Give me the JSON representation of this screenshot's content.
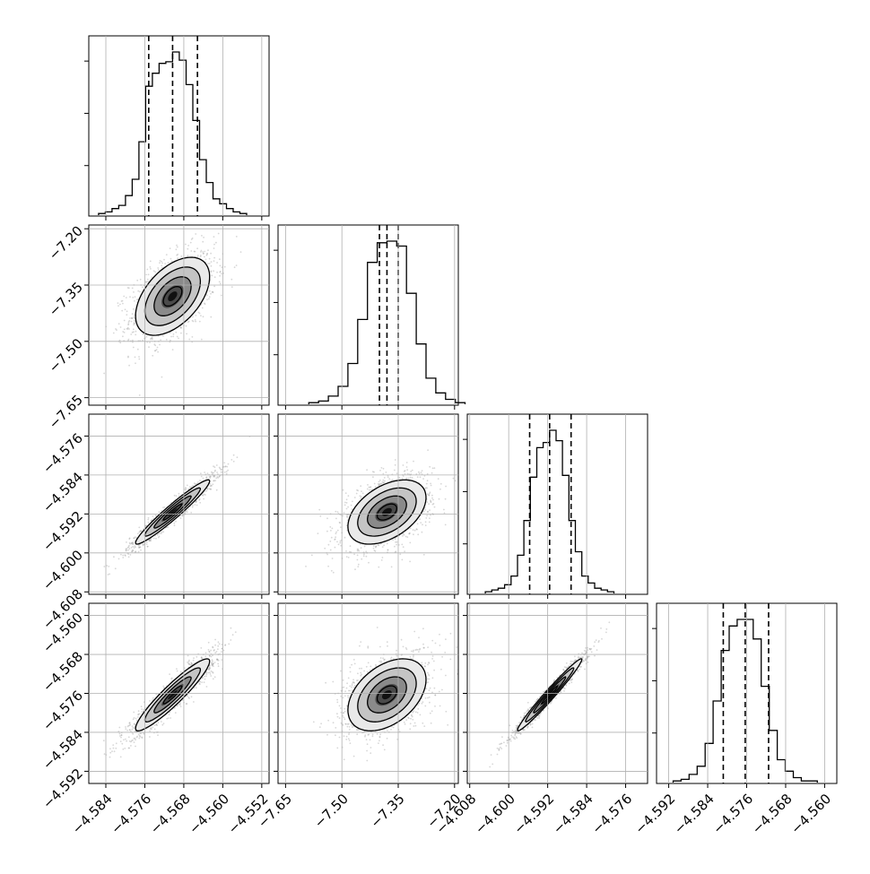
{
  "chart_data": {
    "type": "corner",
    "variables": [
      {
        "range": [
          -4.5875,
          -4.5505
        ],
        "ticks": [
          -4.584,
          -4.576,
          -4.568,
          -4.56,
          -4.552
        ],
        "tick_labels": [
          "−4.584",
          "−4.576",
          "−4.568",
          "−4.560",
          "−4.552"
        ]
      },
      {
        "range": [
          -7.67,
          -7.19
        ],
        "ticks": [
          -7.65,
          -7.5,
          -7.35,
          -7.2
        ],
        "tick_labels": [
          "−7.65",
          "−7.50",
          "−7.35",
          "−7.20"
        ]
      },
      {
        "range": [
          -4.6085,
          -4.5715
        ],
        "ticks": [
          -4.608,
          -4.6,
          -4.592,
          -4.584,
          -4.576
        ],
        "tick_labels": [
          "−4.608",
          "−4.600",
          "−4.592",
          "−4.584",
          "−4.576"
        ]
      },
      {
        "range": [
          -4.5945,
          -4.5575
        ],
        "ticks": [
          -4.592,
          -4.584,
          -4.576,
          -4.568,
          -4.56
        ],
        "tick_labels": [
          "−4.592",
          "−4.584",
          "−4.576",
          "−4.568",
          "−4.560"
        ]
      }
    ],
    "histograms": [
      {
        "counts": [
          1,
          2,
          4,
          6,
          12,
          22,
          45,
          79,
          87,
          93,
          94,
          100,
          95,
          80,
          58,
          34,
          20,
          10,
          7,
          4,
          2,
          1
        ],
        "quantiles": [
          -4.5752,
          -4.5703,
          -4.5652
        ]
      },
      {
        "counts": [
          1,
          2,
          5,
          11,
          25,
          52,
          87,
          99,
          100,
          97,
          68,
          37,
          16,
          7,
          3,
          1
        ],
        "quantiles": [
          -7.4,
          -7.38,
          -7.35
        ]
      },
      {
        "counts": [
          1,
          2,
          3,
          5,
          10,
          22,
          42,
          67,
          84,
          87,
          94,
          88,
          68,
          42,
          24,
          10,
          6,
          3,
          2,
          1
        ],
        "quantiles": [
          -4.5957,
          -4.5916,
          -4.5872
        ]
      },
      {
        "counts": [
          1,
          2,
          5,
          10,
          24,
          50,
          81,
          96,
          100,
          100,
          88,
          59,
          32,
          14,
          7,
          3,
          1,
          1
        ],
        "quantiles": [
          -4.5808,
          -4.5763,
          -4.5715
        ]
      }
    ],
    "means": [
      -4.5703,
      -7.38,
      -4.5916,
      -4.5763
    ],
    "sigmas": [
      0.0038,
      0.052,
      0.0033,
      0.0037
    ],
    "correlation": [
      [
        1.0,
        0.5,
        0.96,
        0.93
      ],
      [
        0.5,
        1.0,
        0.45,
        0.42
      ],
      [
        0.96,
        0.45,
        1.0,
        0.98
      ],
      [
        0.93,
        0.42,
        0.98,
        1.0
      ]
    ],
    "contour_levels_sigma": [
      0.5,
      1.0,
      1.5,
      2.0
    ],
    "grid": true,
    "colors": {
      "samples": "#8c8c8c",
      "density_light": "#f2f2f2",
      "density_dark": "#000000",
      "lines": "#000000"
    }
  }
}
